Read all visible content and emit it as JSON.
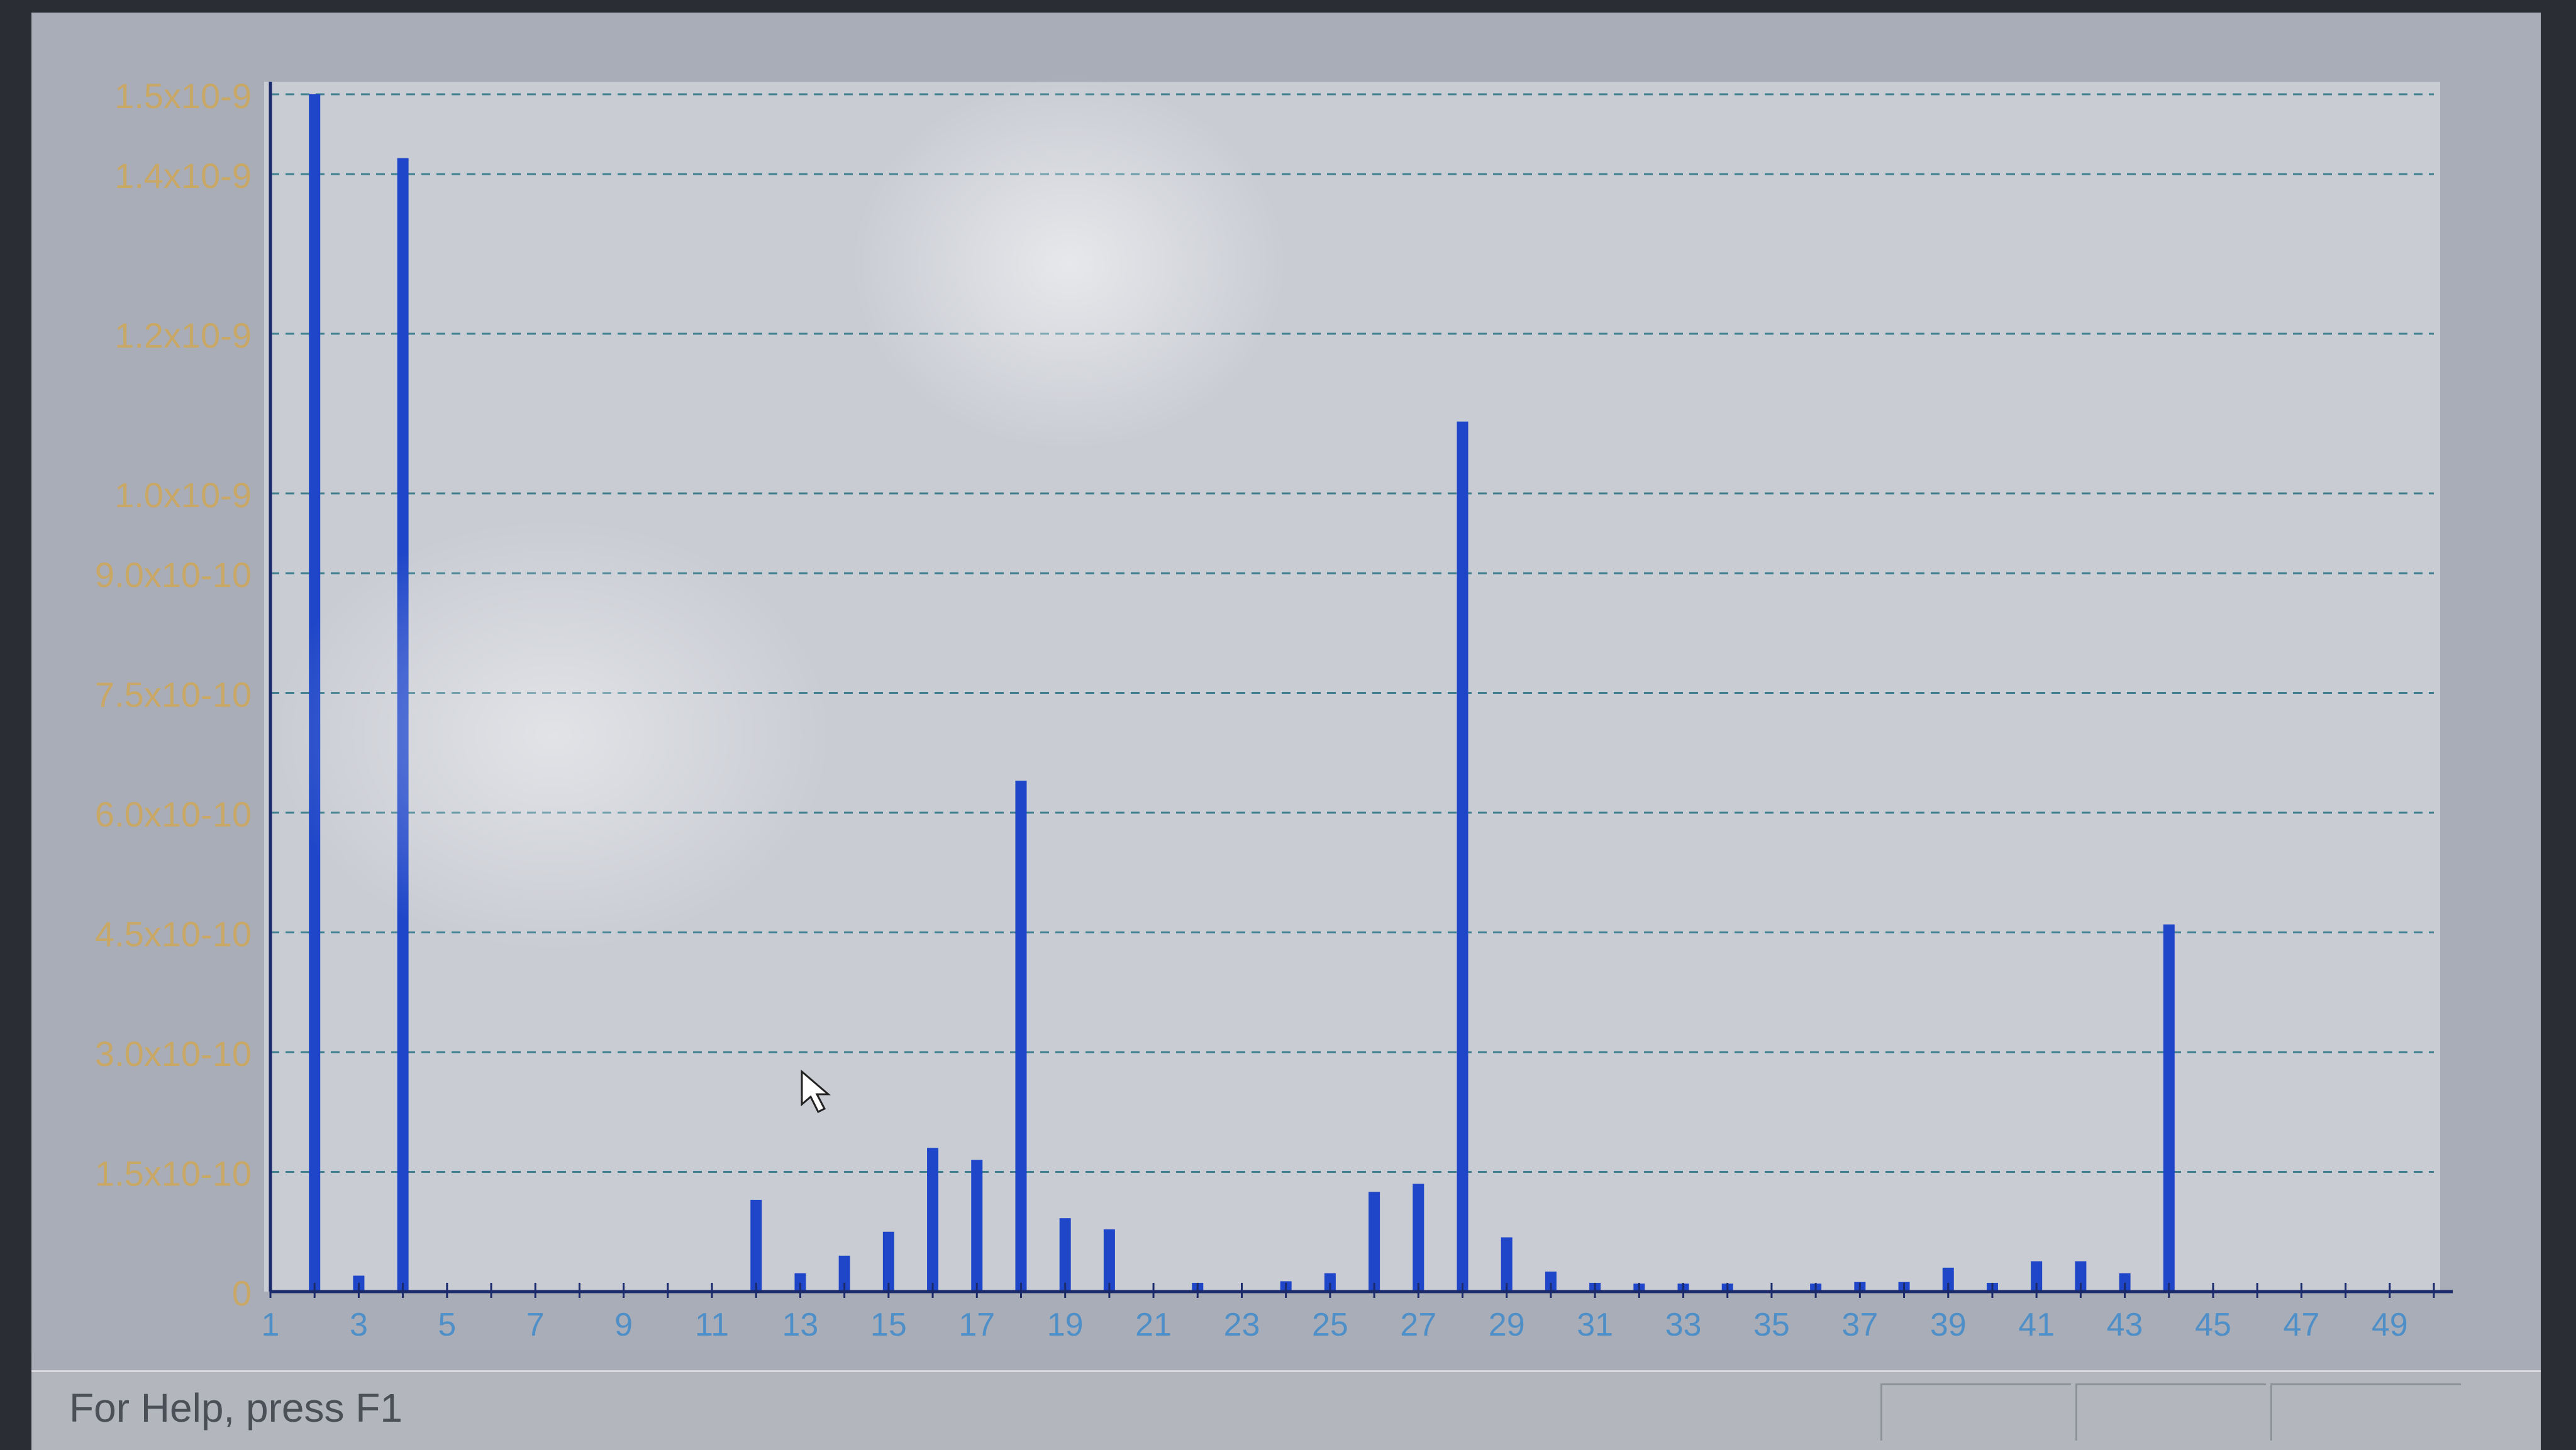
{
  "status_bar": {
    "help_text": "For Help, press F1"
  },
  "colors": {
    "bar": "#1f46c8",
    "grid": "#3f7f8f",
    "axis_labels": "#c9a765",
    "plot_bg": "#c9ccd3"
  },
  "chart_data": {
    "type": "bar",
    "title": "",
    "xlabel": "",
    "ylabel": "",
    "grid": true,
    "ylim": [
      0,
      1.5e-09
    ],
    "xlim": [
      1,
      50
    ],
    "y_ticks": [
      {
        "value": 0,
        "label": "0"
      },
      {
        "value": 1.5e-10,
        "label": "1.5x10-10"
      },
      {
        "value": 3e-10,
        "label": "3.0x10-10"
      },
      {
        "value": 4.5e-10,
        "label": "4.5x10-10"
      },
      {
        "value": 6e-10,
        "label": "6.0x10-10"
      },
      {
        "value": 7.5e-10,
        "label": "7.5x10-10"
      },
      {
        "value": 9e-10,
        "label": "9.0x10-10"
      },
      {
        "value": 1e-09,
        "label": "1.0x10-9"
      },
      {
        "value": 1.2e-09,
        "label": "1.2x10-9"
      },
      {
        "value": 1.4e-09,
        "label": "1.4x10-9"
      },
      {
        "value": 1.5e-09,
        "label": "1.5x10-9"
      }
    ],
    "x_tick_labels": [
      {
        "value": 1,
        "label": "1"
      },
      {
        "value": 3,
        "label": "3"
      },
      {
        "value": 5,
        "label": "5"
      },
      {
        "value": 7,
        "label": "7"
      },
      {
        "value": 9,
        "label": "9"
      },
      {
        "value": 11,
        "label": "11"
      },
      {
        "value": 13,
        "label": "13"
      },
      {
        "value": 15,
        "label": "15"
      },
      {
        "value": 17,
        "label": "17"
      },
      {
        "value": 19,
        "label": "19"
      },
      {
        "value": 21,
        "label": "21"
      },
      {
        "value": 23,
        "label": "23"
      },
      {
        "value": 25,
        "label": "25"
      },
      {
        "value": 27,
        "label": "27"
      },
      {
        "value": 29,
        "label": "29"
      },
      {
        "value": 31,
        "label": "31"
      },
      {
        "value": 33,
        "label": "33"
      },
      {
        "value": 35,
        "label": "35"
      },
      {
        "value": 37,
        "label": "37"
      },
      {
        "value": 39,
        "label": "39"
      },
      {
        "value": 41,
        "label": "41"
      },
      {
        "value": 43,
        "label": "43"
      },
      {
        "value": 45,
        "label": "45"
      },
      {
        "value": 47,
        "label": "47"
      },
      {
        "value": 49,
        "label": "49"
      }
    ],
    "series": [
      {
        "x": [
          2,
          3,
          4,
          12,
          13,
          14,
          15,
          16,
          17,
          18,
          19,
          20,
          22,
          24,
          25,
          26,
          27,
          28,
          29,
          30,
          31,
          32,
          33,
          34,
          36,
          37,
          38,
          39,
          40,
          41,
          42,
          43,
          44,
          45
        ],
        "values": [
          1.5e-09,
          2e-11,
          1.42e-09,
          1.15e-10,
          2.3e-11,
          4.5e-11,
          7.5e-11,
          1.8e-10,
          1.65e-10,
          6.4e-10,
          9.2e-11,
          7.8e-11,
          1.1e-11,
          1.3e-11,
          2.3e-11,
          1.25e-10,
          1.35e-10,
          1.09e-09,
          6.8e-11,
          2.5e-11,
          1.1e-11,
          1e-11,
          1e-11,
          1e-11,
          1e-11,
          1.2e-11,
          1.2e-11,
          3e-11,
          1.1e-11,
          3.8e-11,
          3.8e-11,
          2.3e-11,
          4.6e-10,
          0
        ]
      }
    ]
  }
}
